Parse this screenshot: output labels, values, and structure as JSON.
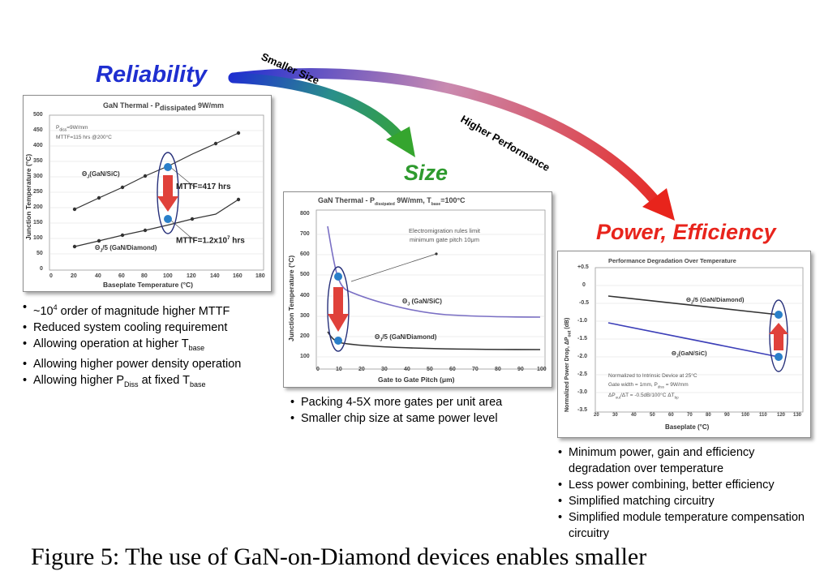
{
  "headings": {
    "reliability": "Reliability",
    "size": "Size",
    "power": "Power, Efficiency"
  },
  "arrow_labels": {
    "smaller_size": "Smaller Size",
    "higher_performance": "Higher Performance"
  },
  "colors": {
    "reliability": "#1f2fd0",
    "size": "#2e9a2e",
    "power": "#e8241c",
    "marker": "#2a7fc9",
    "down_arrow": "#e0413a",
    "ellipse": "#27307a"
  },
  "panel1": {
    "title": "GaN Thermal - P",
    "title_sub": "dissipated",
    "title_end": " 9W/mm",
    "note_line1": "P",
    "note_line1_sub": "diss",
    "note_line1_end": "=9W/mm",
    "note_line2": "MTTF=115 hrs @200°C",
    "y_label": "Junction Temperature (°C)",
    "x_label": "Baseplate Temperature (°C)",
    "y_ticks": [
      "500",
      "450",
      "400",
      "350",
      "300",
      "250",
      "200",
      "150",
      "100",
      "50",
      "0"
    ],
    "x_ticks": [
      "0",
      "20",
      "40",
      "60",
      "80",
      "100",
      "120",
      "140",
      "160",
      "180"
    ],
    "series1_label": "Θ",
    "series1_label_sub": "J",
    "series1_label_end": "(GaN/SiC)",
    "series2_label": "Θ",
    "series2_label_sub": "J",
    "series2_label_end": "/5 (GaN/Diamond)",
    "mttf1": "MTTF=417 hrs",
    "mttf2": "MTTF=1.2x10",
    "mttf2_sup": "7",
    "mttf2_end": " hrs"
  },
  "panel2": {
    "title": "GaN Thermal - P",
    "title_sub": "dissipated",
    "title_mid": " 9W/mm, T",
    "title_sub2": "base",
    "title_end": "=100°C",
    "note_line1": "Electromigration rules limit",
    "note_line2": "minimum gate pitch 10μm",
    "y_label": "Junction Temperature (°C)",
    "x_label": "Gate to Gate Pitch (μm)",
    "y_ticks": [
      "800",
      "700",
      "600",
      "500",
      "400",
      "300",
      "200",
      "100"
    ],
    "x_ticks": [
      "0",
      "10",
      "20",
      "30",
      "40",
      "50",
      "60",
      "70",
      "80",
      "90",
      "100"
    ],
    "series1_label": "Θ",
    "series1_label_sub": "J",
    "series1_label_end": " (GaN/SiC)",
    "series2_label": "Θ",
    "series2_label_sub": "J",
    "series2_label_end": "/5 (GaN/Diamond)"
  },
  "panel3": {
    "title": "Performance Degradation Over Temperature",
    "y_label": "Normalized Power Drop, ΔP",
    "y_label_sub": "out",
    "y_label_end": " (dB)",
    "x_label": "Baseplate (°C)",
    "y_ticks": [
      "+0.5",
      "0",
      "-0.5",
      "-1.0",
      "-1.5",
      "-2.0",
      "-2.5",
      "-3.0",
      "-3.5"
    ],
    "x_ticks": [
      "20",
      "30",
      "40",
      "50",
      "60",
      "70",
      "80",
      "90",
      "100",
      "110",
      "120",
      "130"
    ],
    "series1_label": "Θ",
    "series1_label_sub": "J",
    "series1_label_end": "/5 (GaN/Diamond)",
    "series2_label": "Θ",
    "series2_label_sub": "J",
    "series2_label_end": "(GaN/SiC)",
    "note_line1": "Normalized to Intrinsic Device at 25°C",
    "note_line2": "Gate width = 1mm, P",
    "note_line2_sub": "diss",
    "note_line2_end": " = 9W/mm",
    "note_line3": "ΔP",
    "note_line3_sub": "out",
    "note_line3_end": "/ΔT = -0.5dB/100°C ΔT",
    "note_line3_sub2": "bp"
  },
  "bullets_reliability": [
    {
      "text": "~10",
      "sup": "4",
      "end": " order of magnitude higher MTTF"
    },
    {
      "text": "Reduced system cooling requirement"
    },
    {
      "text": "Allowing operation at higher T",
      "sub": "base"
    },
    {
      "text": "Allowing higher power density operation"
    },
    {
      "text": "Allowing higher P",
      "sub": "Diss",
      "mid": " at fixed T",
      "sub2": "base"
    }
  ],
  "bullets_size": [
    "Packing 4-5X more gates per unit area",
    "Smaller chip size at same power level"
  ],
  "bullets_power": [
    "Minimum power, gain and efficiency degradation over temperature",
    "Less power combining, better efficiency",
    "Simplified matching circuitry",
    "Simplified module temperature compensation circuitry"
  ],
  "caption": "Figure 5: The use of GaN-on-Diamond devices enables smaller"
}
